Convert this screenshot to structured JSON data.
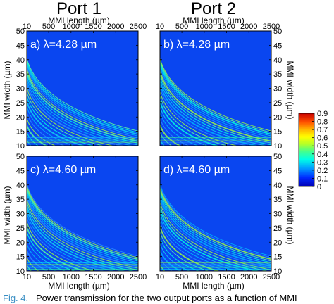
{
  "chart_data": {
    "type": "heatmap",
    "column_titles": [
      "Port 1",
      "Port 2"
    ],
    "xlabel": "MMI length (µm)",
    "ylabel": "MMI width (µm)",
    "xlim": [
      10,
      2500
    ],
    "ylim": [
      10,
      50
    ],
    "x_ticks": [
      "10",
      "500",
      "1000",
      "1500",
      "2000",
      "2500"
    ],
    "y_ticks": [
      "10",
      "15",
      "20",
      "25",
      "30",
      "35",
      "40",
      "45",
      "50"
    ],
    "panels": [
      {
        "label": "a) λ=4.28 µm",
        "port": "Port 1",
        "wavelength_um": 4.28
      },
      {
        "label": "b) λ=4.28 µm",
        "port": "Port 2",
        "wavelength_um": 4.28
      },
      {
        "label": "c) λ=4.60 µm",
        "port": "Port 1",
        "wavelength_um": 4.6
      },
      {
        "label": "d) λ=4.60 µm",
        "port": "Port 2",
        "wavelength_um": 4.6
      }
    ],
    "colorbar": {
      "ticks": [
        "0",
        "0.1",
        "0.2",
        "0.3",
        "0.4",
        "0.5",
        "0.6",
        "0.7",
        "0.8",
        "0.9"
      ],
      "range": [
        0,
        0.9
      ],
      "colors": [
        "#0000b4",
        "#0028ff",
        "#00a0ff",
        "#00ffe6",
        "#46ff8c",
        "#b4ff28",
        "#ffff00",
        "#ffb400",
        "#ff5000",
        "#c80000"
      ]
    }
  },
  "caption": {
    "label": "Fig. 4.",
    "text": "Power transmission for the two output ports as a function of MMI"
  }
}
